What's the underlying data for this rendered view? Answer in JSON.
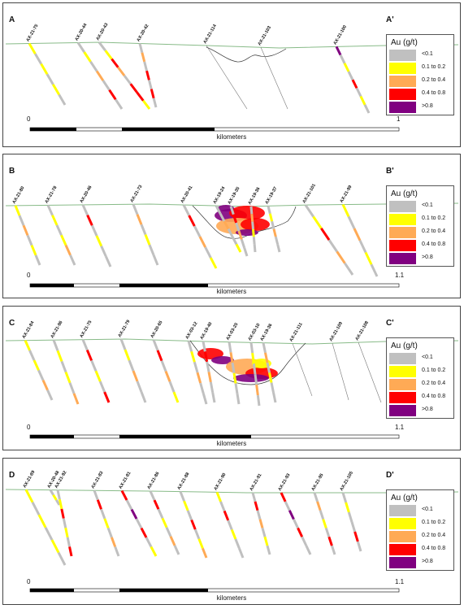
{
  "legend": {
    "title": "Au (g/t)",
    "classes": [
      {
        "label": "<0.1",
        "color": "#c0c0c0"
      },
      {
        "label": "0.1 to 0.2",
        "color": "#ffff00"
      },
      {
        "label": "0.2 to 0.4",
        "color": "#ffaa55"
      },
      {
        "label": "0.4 to 0.8",
        "color": "#ff0000"
      },
      {
        "label": ">0.8",
        "color": "#800080"
      }
    ]
  },
  "colors": {
    "topo": "#88bb88",
    "trace": "#777777",
    "pit": "#333333",
    "border": "#444444"
  },
  "sections": [
    {
      "left_label": "A",
      "right_label": "A'",
      "scale": {
        "start": "0",
        "end": "1",
        "unit": "kilometers"
      },
      "holes": [
        {
          "id": "AX-21-75",
          "mineralized": true,
          "pattern": "YGYGYG"
        },
        {
          "id": "AX-20-44",
          "mineralized": true,
          "pattern": "GYGOGRG"
        },
        {
          "id": "AX-20-43",
          "mineralized": true,
          "pattern": "GYROGRRY"
        },
        {
          "id": "AX-20-42",
          "mineralized": true,
          "pattern": "GOGRGRG"
        },
        {
          "id": "AX-21-114",
          "mineralized": false
        },
        {
          "id": "AX-21-103",
          "mineralized": false
        },
        {
          "id": "AX-21-100",
          "mineralized": true,
          "pattern": "PGYGRGYG"
        }
      ]
    },
    {
      "left_label": "B",
      "right_label": "B'",
      "scale": {
        "start": "0",
        "end": "1.1",
        "unit": "kilometers"
      },
      "holes": [
        {
          "id": "AX-21-80",
          "mineralized": true,
          "pattern": "YGOGYG"
        },
        {
          "id": "AX-21-78",
          "mineralized": true,
          "pattern": "GYGYOG"
        },
        {
          "id": "AX-20-46",
          "mineralized": true,
          "pattern": "GRGYGG"
        },
        {
          "id": "AX-21-73",
          "mineralized": true,
          "pattern": "GOGYGG"
        },
        {
          "id": "AX-20-41",
          "mineralized": true,
          "pattern": "GRGOGY"
        },
        {
          "id": "AX-19-24",
          "mineralized": true,
          "pattern": "GGOGGY"
        },
        {
          "id": "AX-19-35",
          "mineralized": true,
          "pattern": "GRGOGG"
        },
        {
          "id": "AX-19-36",
          "mineralized": true,
          "pattern": "GOGYGG"
        },
        {
          "id": "AX-19-37",
          "mineralized": true,
          "pattern": "GYGOGG"
        },
        {
          "id": "AX-21-101",
          "mineralized": true,
          "pattern": "GYRGOG"
        },
        {
          "id": "AX-21-99",
          "mineralized": true,
          "pattern": "YGOGYG"
        }
      ]
    },
    {
      "left_label": "C",
      "right_label": "C'",
      "scale": {
        "start": "0",
        "end": "1.1",
        "unit": "kilometers"
      },
      "holes": [
        {
          "id": "AX-21-84",
          "mineralized": true,
          "pattern": "YGYGOG"
        },
        {
          "id": "AX-21-96",
          "mineralized": true,
          "pattern": "GYGYGO"
        },
        {
          "id": "AX-21-75",
          "mineralized": true,
          "pattern": "GRGYGR"
        },
        {
          "id": "AX-21-79",
          "mineralized": true,
          "pattern": "GYGOGG"
        },
        {
          "id": "AX-20-65",
          "mineralized": true,
          "pattern": "GRGOGY"
        },
        {
          "id": "AX-03-12",
          "mineralized": true,
          "pattern": "GYGOGG"
        },
        {
          "id": "AX-19-40",
          "mineralized": true,
          "pattern": "GRGOGG"
        },
        {
          "id": "AX-03-25",
          "mineralized": true,
          "pattern": "GOGYGG"
        },
        {
          "id": "AX-03-10",
          "mineralized": true,
          "pattern": "GYGGOG"
        },
        {
          "id": "AX-19-36",
          "mineralized": true,
          "pattern": "GOGYGG"
        },
        {
          "id": "AX-21-111",
          "mineralized": false
        },
        {
          "id": "AX-21-109",
          "mineralized": false
        },
        {
          "id": "AX-21-108",
          "mineralized": false
        }
      ]
    },
    {
      "left_label": "D",
      "right_label": "D'",
      "scale": {
        "start": "0",
        "end": "1.1",
        "unit": "kilometers"
      },
      "holes": [
        {
          "id": "AX-21-89",
          "mineralized": true,
          "pattern": "YGYGYG"
        },
        {
          "id": "AX-20-48",
          "mineralized": true,
          "pattern": "GYG"
        },
        {
          "id": "AX-21-92",
          "mineralized": true,
          "pattern": "GYRGYGR"
        },
        {
          "id": "AX-21-83",
          "mineralized": true,
          "pattern": "GRGYGOG"
        },
        {
          "id": "AX-21-81",
          "mineralized": true,
          "pattern": "RGPGRGY"
        },
        {
          "id": "AX-21-86",
          "mineralized": true,
          "pattern": "GRGYGOG"
        },
        {
          "id": "AX-21-88",
          "mineralized": true,
          "pattern": "GYGRGYO"
        },
        {
          "id": "AX-21-90",
          "mineralized": true,
          "pattern": "YGRGYGG"
        },
        {
          "id": "AX-21-91",
          "mineralized": true,
          "pattern": "GRGOGYG"
        },
        {
          "id": "AX-21-93",
          "mineralized": true,
          "pattern": "RGPGRGG"
        },
        {
          "id": "AX-21-95",
          "mineralized": true,
          "pattern": "GOGYGRG"
        },
        {
          "id": "AX-21-105",
          "mineralized": true,
          "pattern": "GYGGRG"
        }
      ]
    }
  ]
}
